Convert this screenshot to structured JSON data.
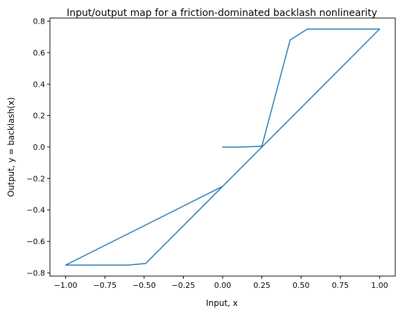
{
  "chart_data": {
    "type": "line",
    "title": "Input/output map for a friction-dominated backlash nonlinearity",
    "xlabel": "Input, x",
    "ylabel": "Output, y = backlash(x)",
    "xlim": [
      -1.1,
      1.1
    ],
    "ylim": [
      -0.82,
      0.82
    ],
    "xticks": [
      -1.0,
      -0.75,
      -0.5,
      -0.25,
      0.0,
      0.25,
      0.5,
      0.75,
      1.0
    ],
    "xtick_labels": [
      "−1.00",
      "−0.75",
      "−0.50",
      "−0.25",
      "0.00",
      "0.25",
      "0.50",
      "0.75",
      "1.00"
    ],
    "yticks": [
      -0.8,
      -0.6,
      -0.4,
      -0.2,
      0.0,
      0.2,
      0.4,
      0.6,
      0.8
    ],
    "ytick_labels": [
      "−0.8",
      "−0.6",
      "−0.4",
      "−0.2",
      "0.0",
      "0.2",
      "0.4",
      "0.6",
      "0.8"
    ],
    "grid": false,
    "series": [
      {
        "color": "#1f77b4",
        "x": [
          0.0,
          0.12,
          0.25,
          0.43,
          0.54,
          1.0,
          0.0,
          -1.0,
          -0.6,
          -0.49,
          0.0
        ],
        "y": [
          0.0,
          0.0,
          0.005,
          0.68,
          0.75,
          0.75,
          -0.25,
          -0.75,
          -0.75,
          -0.74,
          -0.25
        ]
      }
    ]
  }
}
